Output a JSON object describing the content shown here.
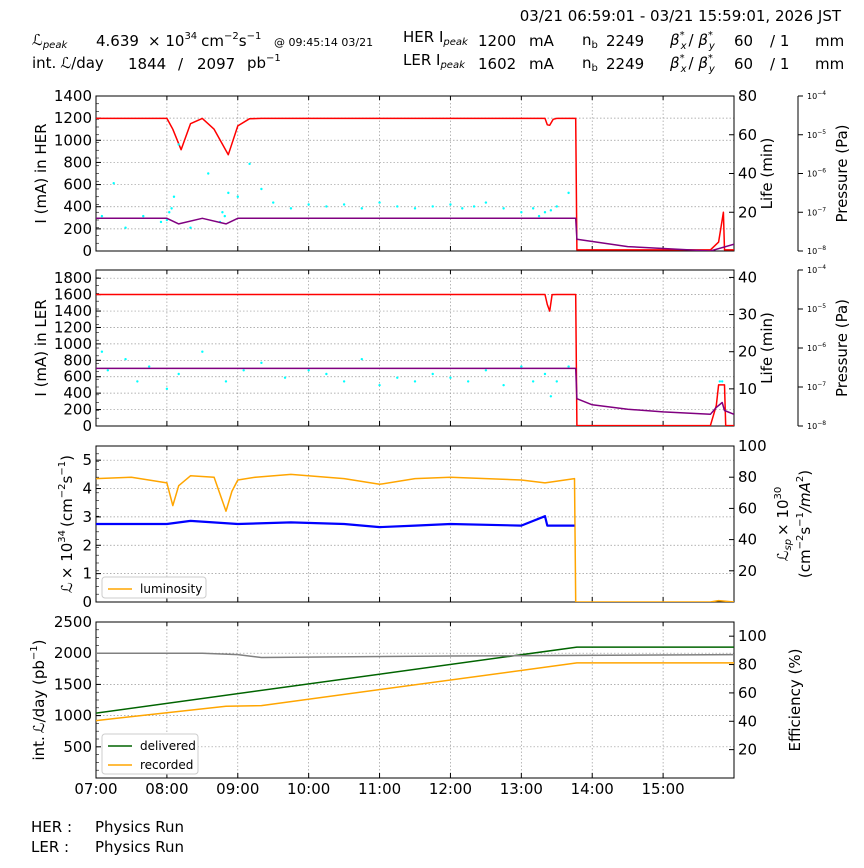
{
  "header": {
    "time_range": "03/21 06:59:01 - 03/21 15:59:01, 2026 JST",
    "lpeak_label": "peak",
    "lpeak_value": "4.639",
    "lpeak_unit_pre": "× 10",
    "lpeak_exp": "34",
    "lpeak_unit_cm": "cm",
    "lpeak_unit_s": "s",
    "lpeak_time": "@ 09:45:14 03/21",
    "intl_label": "int.",
    "intl_day": "/day",
    "intl_value1": "1844",
    "intl_sep": "/",
    "intl_value2": "2097",
    "intl_unit": "pb",
    "her_label": "HER I",
    "ler_label": "LER I",
    "peak_sub": "peak",
    "her_ipeak": "1200",
    "ler_ipeak": "1602",
    "ma": "mA",
    "nb_label": "n",
    "nb_sub": "b",
    "her_nb": "2249",
    "ler_nb": "2249",
    "beta_label": "β",
    "beta_x": "x",
    "beta_y": "y",
    "her_beta": "60",
    "her_beta_div": "/ 1",
    "ler_beta": "60",
    "ler_beta_div": "/ 1",
    "mm": "mm"
  },
  "footer": {
    "her_label": "HER :",
    "her_status": "Physics Run",
    "ler_label": "LER :",
    "ler_status": "Physics Run"
  },
  "colors": {
    "current": "#ff0000",
    "lifetime": "#00ffff",
    "pressure": "#800080",
    "luminosity": "#ffa500",
    "specific": "#0000ff",
    "delivered": "#006400",
    "recorded": "#ffa500",
    "efficiency": "#808080"
  },
  "chart_data": [
    {
      "type": "line",
      "panel": "HER",
      "ylabel": "I (mA) in HER",
      "y2label": "Life (min)",
      "y3label": "Pressure (Pa)",
      "xlim": [
        "07:00",
        "16:00"
      ],
      "ylim": [
        0,
        1400
      ],
      "yticks": [
        "0",
        "200",
        "400",
        "600",
        "800",
        "1000",
        "1200",
        "1400"
      ],
      "y2lim": [
        0,
        80
      ],
      "y2ticks": [
        "20",
        "40",
        "60",
        "80"
      ],
      "y3lim": [
        "1e-8",
        "1e-4"
      ],
      "y3ticks": [
        {
          "base": "10",
          "exp": "−8"
        },
        {
          "base": "10",
          "exp": "−7"
        },
        {
          "base": "10",
          "exp": "−6"
        },
        {
          "base": "10",
          "exp": "−5"
        },
        {
          "base": "10",
          "exp": "−4"
        }
      ],
      "series": [
        {
          "role": "current",
          "x": [
            "07:00",
            "08:00",
            "08:05",
            "08:12",
            "08:20",
            "08:30",
            "08:40",
            "08:52",
            "09:00",
            "09:10",
            "09:20",
            "13:15",
            "13:20",
            "13:22",
            "13:24",
            "13:27",
            "13:30",
            "13:46",
            "13:47",
            "15:40",
            "15:47",
            "15:51",
            "15:52",
            "15:53",
            "16:00"
          ],
          "y": [
            1198,
            1198,
            1100,
            915,
            1150,
            1198,
            1100,
            870,
            1130,
            1195,
            1198,
            1198,
            1198,
            1140,
            1135,
            1190,
            1198,
            1198,
            10,
            10,
            80,
            350,
            10,
            10,
            10
          ]
        },
        {
          "role": "lifetime",
          "style": "dots",
          "x": [
            "07:05",
            "07:15",
            "07:25",
            "07:40",
            "07:55",
            "08:00",
            "08:02",
            "08:04",
            "08:06",
            "08:10",
            "08:20",
            "08:35",
            "08:45",
            "08:47",
            "08:49",
            "08:52",
            "09:00",
            "09:10",
            "09:20",
            "09:30",
            "09:45",
            "10:00",
            "10:15",
            "10:30",
            "10:45",
            "11:00",
            "11:15",
            "11:30",
            "11:45",
            "12:00",
            "12:10",
            "12:20",
            "12:30",
            "12:45",
            "13:00",
            "13:10",
            "13:15",
            "13:20",
            "13:25",
            "13:30",
            "13:40"
          ],
          "y": [
            18,
            35,
            12,
            18,
            15,
            16,
            20,
            22,
            28,
            55,
            12,
            40,
            15,
            20,
            18,
            30,
            28,
            45,
            32,
            25,
            22,
            24,
            23,
            24,
            22,
            25,
            23,
            22,
            23,
            24,
            22,
            23,
            25,
            22,
            20,
            22,
            18,
            20,
            21,
            23,
            30
          ]
        },
        {
          "role": "pressure",
          "x": [
            "07:00",
            "08:00",
            "08:10",
            "08:30",
            "08:50",
            "09:00",
            "09:20",
            "13:40",
            "13:46",
            "13:47",
            "14:30",
            "15:40",
            "16:00"
          ],
          "y": [
            "7e-8",
            "7e-8",
            "5e-8",
            "7e-8",
            "5e-8",
            "7e-8",
            "7e-8",
            "7e-8",
            "7e-8",
            "2e-8",
            "1.3e-8",
            "1e-8",
            "1.5e-8"
          ]
        }
      ]
    },
    {
      "type": "line",
      "panel": "LER",
      "ylabel": "I (mA) in LER",
      "y2label": "Life (min)",
      "y3label": "Pressure (Pa)",
      "xlim": [
        "07:00",
        "16:00"
      ],
      "ylim": [
        0,
        1900
      ],
      "yticks": [
        "0",
        "200",
        "400",
        "600",
        "800",
        "1000",
        "1200",
        "1400",
        "1600",
        "1800"
      ],
      "y2lim": [
        0,
        42
      ],
      "y2ticks": [
        "10",
        "20",
        "30",
        "40"
      ],
      "y3lim": [
        "1e-8",
        "1e-4"
      ],
      "y3ticks": [
        {
          "base": "10",
          "exp": "−8"
        },
        {
          "base": "10",
          "exp": "−7"
        },
        {
          "base": "10",
          "exp": "−6"
        },
        {
          "base": "10",
          "exp": "−5"
        },
        {
          "base": "10",
          "exp": "−4"
        }
      ],
      "series": [
        {
          "role": "current",
          "x": [
            "07:00",
            "13:20",
            "13:22",
            "13:24",
            "13:26",
            "13:30",
            "13:46",
            "13:47",
            "15:40",
            "15:45",
            "15:47",
            "15:52",
            "15:53",
            "16:00"
          ],
          "y": [
            1602,
            1602,
            1480,
            1400,
            1600,
            1602,
            1602,
            5,
            5,
            250,
            500,
            500,
            5,
            5
          ]
        },
        {
          "role": "lifetime",
          "style": "dots",
          "x": [
            "07:05",
            "07:10",
            "07:25",
            "07:35",
            "07:45",
            "08:00",
            "08:10",
            "08:30",
            "08:50",
            "09:05",
            "09:20",
            "09:40",
            "10:00",
            "10:15",
            "10:30",
            "10:45",
            "11:00",
            "11:15",
            "11:30",
            "11:45",
            "12:00",
            "12:15",
            "12:30",
            "12:45",
            "13:00",
            "13:10",
            "13:20",
            "13:25",
            "13:30",
            "13:40",
            "15:48",
            "15:50"
          ],
          "y": [
            20,
            15,
            18,
            12,
            16,
            10,
            14,
            20,
            12,
            15,
            17,
            13,
            15,
            14,
            12,
            18,
            11,
            13,
            12,
            14,
            13,
            12,
            15,
            11,
            16,
            12,
            14,
            8,
            12,
            16,
            12,
            12
          ]
        },
        {
          "role": "pressure",
          "x": [
            "07:00",
            "13:46",
            "13:47",
            "14:00",
            "14:30",
            "15:00",
            "15:40",
            "15:45",
            "15:50",
            "15:52",
            "16:00"
          ],
          "y": [
            "3e-7",
            "3e-7",
            "5e-8",
            "3.5e-8",
            "2.7e-8",
            "2.3e-8",
            "2e-8",
            "3e-8",
            "4e-8",
            "2.5e-8",
            "2e-8"
          ]
        }
      ]
    },
    {
      "type": "line",
      "panel": "luminosity",
      "ylabel_pre": "× 10",
      "ylabel_exp": "34",
      "ylabel_unit": "(cm",
      "ylabel_unit2": "s",
      "y2label_a": "sp",
      "y2label_b": "× 10",
      "y2label_exp": "30",
      "y2label_c": "(cm",
      "y2label_d": "s",
      "y2label_e": "/mA",
      "xlim": [
        "07:00",
        "16:00"
      ],
      "ylim": [
        0,
        5.5
      ],
      "yticks": [
        "0",
        "1",
        "2",
        "3",
        "4",
        "5"
      ],
      "y2lim": [
        0,
        100
      ],
      "y2ticks": [
        "20",
        "40",
        "60",
        "80",
        "100"
      ],
      "legend": [
        "luminosity"
      ],
      "legend_position": "bottom-left",
      "series": [
        {
          "name": "luminosity",
          "role": "luminosity",
          "x": [
            "07:00",
            "07:30",
            "08:00",
            "08:05",
            "08:10",
            "08:20",
            "08:40",
            "08:50",
            "08:55",
            "09:00",
            "09:15",
            "09:45",
            "10:30",
            "11:00",
            "11:30",
            "12:00",
            "13:00",
            "13:20",
            "13:45",
            "13:46",
            "15:40",
            "15:47",
            "16:00"
          ],
          "y": [
            4.35,
            4.4,
            4.2,
            3.4,
            4.1,
            4.45,
            4.4,
            3.2,
            3.9,
            4.3,
            4.4,
            4.5,
            4.35,
            4.15,
            4.35,
            4.4,
            4.3,
            4.2,
            4.35,
            0,
            0,
            0.05,
            0
          ]
        },
        {
          "role": "specific",
          "x": [
            "07:00",
            "08:00",
            "08:20",
            "09:00",
            "09:45",
            "10:30",
            "11:00",
            "11:30",
            "12:00",
            "13:00",
            "13:20",
            "13:22",
            "13:45"
          ],
          "y": [
            50,
            50,
            52,
            50,
            51,
            50,
            48,
            49,
            50,
            49,
            55,
            49,
            49
          ]
        }
      ]
    },
    {
      "type": "line",
      "panel": "integrated",
      "ylabel_pre": "int.",
      "ylabel_post": "/day (pb",
      "y2label": "Efficiency (%)",
      "xlim": [
        "07:00",
        "16:00"
      ],
      "ylim": [
        0,
        2500
      ],
      "yticks": [
        "500",
        "1000",
        "1500",
        "2000",
        "2500"
      ],
      "y2lim": [
        0,
        110
      ],
      "y2ticks": [
        "20",
        "40",
        "60",
        "80",
        "100"
      ],
      "xticks": [
        "07:00",
        "08:00",
        "09:00",
        "10:00",
        "11:00",
        "12:00",
        "13:00",
        "14:00",
        "15:00"
      ],
      "legend": [
        "delivered",
        "recorded"
      ],
      "legend_position": "bottom-left",
      "series": [
        {
          "name": "delivered",
          "role": "delivered",
          "x": [
            "07:00",
            "13:47",
            "16:00"
          ],
          "y": [
            1040,
            2097,
            2097
          ]
        },
        {
          "name": "recorded",
          "role": "recorded",
          "x": [
            "07:00",
            "08:50",
            "09:20",
            "13:47",
            "16:00"
          ],
          "y": [
            920,
            1150,
            1160,
            1844,
            1844
          ]
        },
        {
          "role": "efficiency",
          "x": [
            "07:00",
            "08:30",
            "09:00",
            "09:20",
            "12:00",
            "16:00"
          ],
          "y": [
            88,
            88,
            87,
            85,
            86,
            87
          ]
        }
      ]
    }
  ]
}
